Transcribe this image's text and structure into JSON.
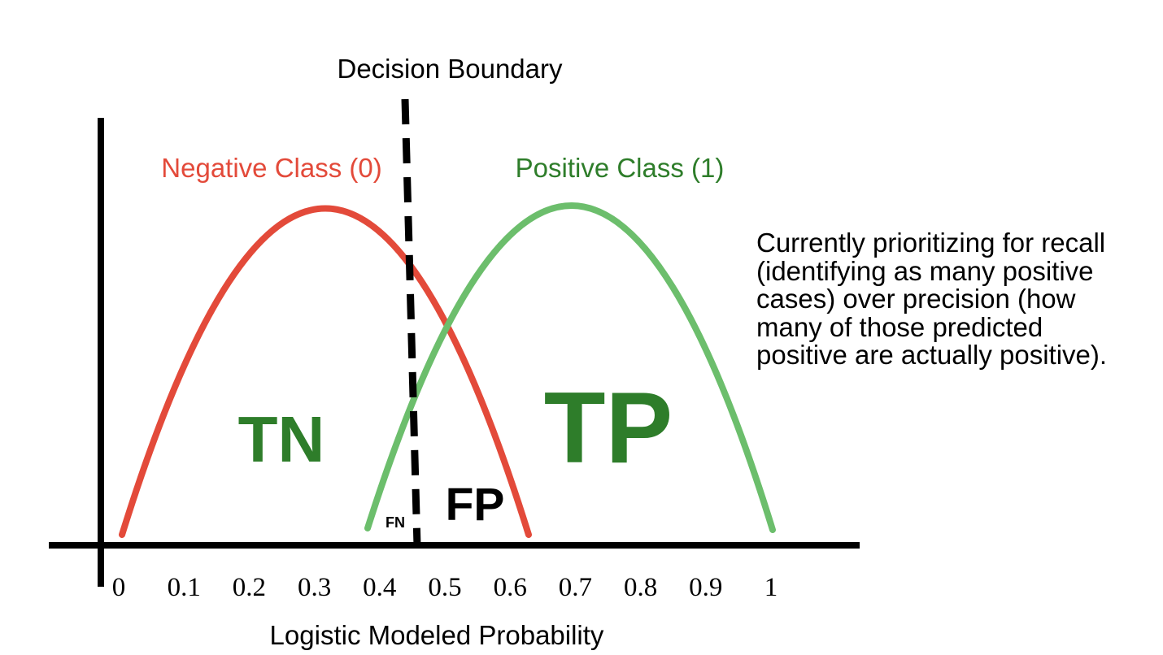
{
  "diagram": {
    "boundary_label": "Decision Boundary",
    "negative_label": "Negative Class (0)",
    "positive_label": "Positive Class (1)",
    "region_labels": {
      "tn": "TN",
      "tp": "TP",
      "fp": "FP",
      "fn": "FN"
    },
    "x_axis_label": "Logistic Modeled Probability",
    "x_ticks": [
      "0",
      "0.1",
      "0.2",
      "0.3",
      "0.4",
      "0.5",
      "0.6",
      "0.7",
      "0.8",
      "0.9",
      "1"
    ],
    "note_lines": [
      "Currently prioritizing for recall",
      "(identifying as many positive",
      "cases) over precision (how",
      "many of those predicted",
      "positive are actually positive)."
    ],
    "colors": {
      "negative": "#e34a3a",
      "positive": "#6cbe6c",
      "label_green": "#2e7d2a",
      "axis": "#000000"
    }
  }
}
